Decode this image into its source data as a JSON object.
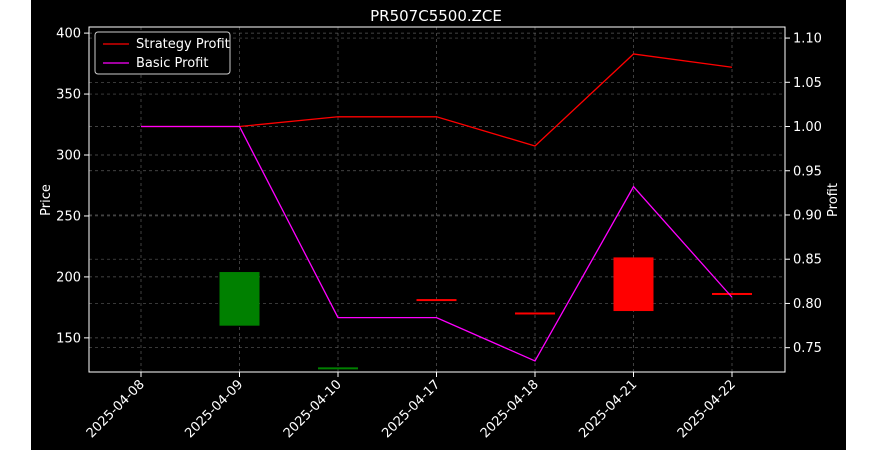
{
  "chart_data": {
    "type": "line",
    "title": "PR507C5500.ZCE",
    "xlabel": "",
    "ylabel": "Price",
    "y2label": "Profit",
    "categories": [
      "2025-04-08",
      "2025-04-09",
      "2025-04-10",
      "2025-04-17",
      "2025-04-18",
      "2025-04-21",
      "2025-04-22"
    ],
    "ylim": [
      122,
      405
    ],
    "y2lim": [
      0.7225,
      1.1125
    ],
    "y_ticks": [
      150,
      200,
      250,
      300,
      350,
      400
    ],
    "y2_ticks": [
      "0.75",
      "0.80",
      "0.85",
      "0.90",
      "0.95",
      "1.00",
      "1.05",
      "1.10"
    ],
    "grid": true,
    "legend": "top-left",
    "background": "#000000",
    "candles": [
      {
        "date": "2025-04-08",
        "open": null,
        "close": null
      },
      {
        "date": "2025-04-09",
        "open": 160,
        "close": 204,
        "color": "#008000"
      },
      {
        "date": "2025-04-10",
        "open": 125,
        "close": 125,
        "color": "#008000"
      },
      {
        "date": "2025-04-17",
        "open": 181,
        "close": 181,
        "color": "#ff0000"
      },
      {
        "date": "2025-04-18",
        "open": 170,
        "close": 170,
        "color": "#ff0000"
      },
      {
        "date": "2025-04-21",
        "open": 216,
        "close": 172,
        "color": "#ff0000"
      },
      {
        "date": "2025-04-22",
        "open": 186,
        "close": 186,
        "color": "#ff0000"
      }
    ],
    "series": [
      {
        "name": "Strategy Profit",
        "color": "#ff0000",
        "axis": "right",
        "values": [
          1.0,
          1.0,
          1.011,
          1.011,
          0.978,
          1.082,
          1.067
        ]
      },
      {
        "name": "Basic Profit",
        "color": "#ff00ff",
        "axis": "right",
        "values": [
          1.0,
          1.0,
          0.784,
          0.784,
          0.735,
          0.932,
          0.807
        ]
      }
    ]
  }
}
